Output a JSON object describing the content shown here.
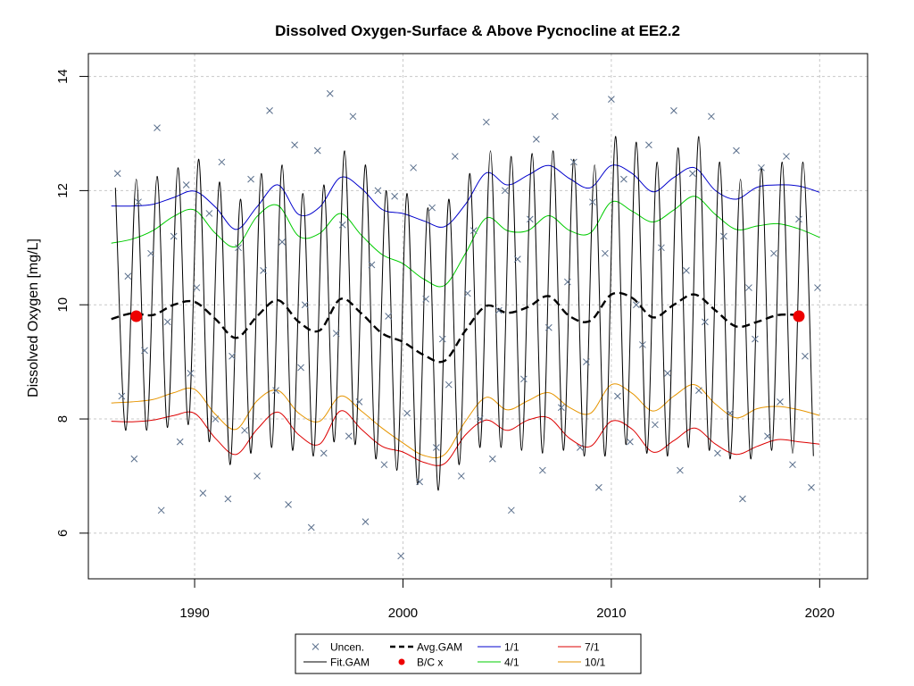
{
  "chart_data": {
    "type": "line",
    "title": "Dissolved Oxygen-Surface & Above Pycnocline at EE2.2",
    "ylabel": "Dissolved Oxygen [mg/L]",
    "xlabel": "",
    "xlim": [
      1984.9,
      2022.3
    ],
    "ylim": [
      5.2,
      14.4
    ],
    "x_ticks": [
      1990,
      2000,
      2010,
      2020
    ],
    "x_tick_labels": [
      "1990",
      "2000",
      "2010",
      "2020"
    ],
    "y_ticks": [
      6,
      8,
      10,
      12,
      14
    ],
    "y_tick_labels": [
      "6",
      "8",
      "10",
      "12",
      "14"
    ],
    "grid": true,
    "legend_position": "bottom-center",
    "legend": [
      {
        "label": "Uncen.",
        "kind": "cross",
        "color": "#5a6f8c"
      },
      {
        "label": "Avg.GAM",
        "kind": "dashed",
        "color": "#000000"
      },
      {
        "label": "1/1",
        "kind": "line",
        "color": "#0000cc"
      },
      {
        "label": "7/1",
        "kind": "line",
        "color": "#dd0000"
      },
      {
        "label": "Fit.GAM",
        "kind": "line",
        "color": "#000000"
      },
      {
        "label": "B/C x",
        "kind": "dot",
        "color": "#ee0000"
      },
      {
        "label": "4/1",
        "kind": "line",
        "color": "#00cc00"
      },
      {
        "label": "10/1",
        "kind": "line",
        "color": "#e69500"
      }
    ],
    "series": [
      {
        "name": "1/1",
        "color": "#0000cc",
        "x": [
          1986.0,
          1987.0,
          1988.0,
          1989.0,
          1990.0,
          1991.0,
          1992.0,
          1993.0,
          1994.0,
          1995.0,
          1996.0,
          1997.0,
          1998.0,
          1999.0,
          2000.0,
          2001.0,
          2002.0,
          2003.0,
          2004.0,
          2005.0,
          2006.0,
          2007.0,
          2008.0,
          2009.0,
          2010.0,
          2011.0,
          2012.0,
          2013.0,
          2014.0,
          2015.0,
          2016.0,
          2017.0,
          2018.0,
          2019.0,
          2020.0
        ],
        "y": [
          11.73,
          11.73,
          11.76,
          11.88,
          11.99,
          11.71,
          11.32,
          11.72,
          12.1,
          11.58,
          11.71,
          12.23,
          12.04,
          11.67,
          11.6,
          11.47,
          11.37,
          11.76,
          12.31,
          12.1,
          12.27,
          12.44,
          12.21,
          12.05,
          12.44,
          12.3,
          11.98,
          12.23,
          12.4,
          12.0,
          11.85,
          12.06,
          12.1,
          12.08,
          11.97
        ]
      },
      {
        "name": "4/1",
        "color": "#00cc00",
        "x": [
          1986.0,
          1987.0,
          1988.0,
          1989.0,
          1990.0,
          1991.0,
          1992.0,
          1993.0,
          1994.0,
          1995.0,
          1996.0,
          1997.0,
          1998.0,
          1999.0,
          2000.0,
          2001.0,
          2002.0,
          2003.0,
          2004.0,
          2005.0,
          2006.0,
          2007.0,
          2008.0,
          2009.0,
          2010.0,
          2011.0,
          2012.0,
          2013.0,
          2014.0,
          2015.0,
          2016.0,
          2017.0,
          2018.0,
          2019.0,
          2020.0
        ],
        "y": [
          11.08,
          11.15,
          11.3,
          11.55,
          11.66,
          11.25,
          11.02,
          11.55,
          11.74,
          11.2,
          11.25,
          11.6,
          11.22,
          10.88,
          10.72,
          10.45,
          10.34,
          10.9,
          11.52,
          11.3,
          11.3,
          11.56,
          11.3,
          11.26,
          11.8,
          11.64,
          11.45,
          11.66,
          11.9,
          11.58,
          11.32,
          11.38,
          11.42,
          11.33,
          11.18
        ]
      },
      {
        "name": "Avg.GAM",
        "color": "#000000",
        "x": [
          1986.0,
          1987.0,
          1988.0,
          1989.0,
          1990.0,
          1991.0,
          1992.0,
          1993.0,
          1994.0,
          1995.0,
          1996.0,
          1997.0,
          1998.0,
          1999.0,
          2000.0,
          2001.0,
          2002.0,
          2003.0,
          2004.0,
          2005.0,
          2006.0,
          2007.0,
          2008.0,
          2009.0,
          2010.0,
          2011.0,
          2012.0,
          2013.0,
          2014.0,
          2015.0,
          2016.0,
          2017.0,
          2018.0,
          2019.0
        ],
        "y": [
          9.75,
          9.85,
          9.82,
          10.0,
          10.05,
          9.75,
          9.42,
          9.8,
          10.08,
          9.7,
          9.55,
          10.1,
          9.85,
          9.5,
          9.35,
          9.12,
          9.02,
          9.55,
          9.98,
          9.86,
          9.96,
          10.15,
          9.8,
          9.72,
          10.18,
          10.12,
          9.78,
          10.0,
          10.18,
          9.9,
          9.62,
          9.7,
          9.82,
          9.82
        ]
      },
      {
        "name": "10/1",
        "color": "#e69500",
        "x": [
          1986.0,
          1987.0,
          1988.0,
          1989.0,
          1990.0,
          1991.0,
          1992.0,
          1993.0,
          1994.0,
          1995.0,
          1996.0,
          1997.0,
          1998.0,
          1999.0,
          2000.0,
          2001.0,
          2002.0,
          2003.0,
          2004.0,
          2005.0,
          2006.0,
          2007.0,
          2008.0,
          2009.0,
          2010.0,
          2011.0,
          2012.0,
          2013.0,
          2014.0,
          2015.0,
          2016.0,
          2017.0,
          2018.0,
          2019.0,
          2020.0
        ],
        "y": [
          8.28,
          8.3,
          8.34,
          8.46,
          8.52,
          8.08,
          7.82,
          8.32,
          8.5,
          8.1,
          7.96,
          8.4,
          8.14,
          7.84,
          7.58,
          7.36,
          7.38,
          7.96,
          8.38,
          8.16,
          8.32,
          8.46,
          8.2,
          8.1,
          8.6,
          8.45,
          8.14,
          8.4,
          8.6,
          8.26,
          8.02,
          8.18,
          8.22,
          8.16,
          8.06
        ]
      },
      {
        "name": "7/1",
        "color": "#dd0000",
        "x": [
          1986.0,
          1987.0,
          1988.0,
          1989.0,
          1990.0,
          1991.0,
          1992.0,
          1993.0,
          1994.0,
          1995.0,
          1996.0,
          1997.0,
          1998.0,
          1999.0,
          2000.0,
          2001.0,
          2002.0,
          2003.0,
          2004.0,
          2005.0,
          2006.0,
          2007.0,
          2008.0,
          2009.0,
          2010.0,
          2011.0,
          2012.0,
          2013.0,
          2014.0,
          2015.0,
          2016.0,
          2017.0,
          2018.0,
          2019.0,
          2020.0
        ],
        "y": [
          7.96,
          7.95,
          7.98,
          8.06,
          8.1,
          7.66,
          7.38,
          7.82,
          8.12,
          7.72,
          7.56,
          8.14,
          7.82,
          7.52,
          7.42,
          7.24,
          7.22,
          7.72,
          7.98,
          7.8,
          7.98,
          8.02,
          7.66,
          7.52,
          7.96,
          7.82,
          7.42,
          7.62,
          7.84,
          7.56,
          7.38,
          7.52,
          7.64,
          7.6,
          7.56
        ]
      },
      {
        "name": "Fit.GAM",
        "color": "#000000",
        "x": [
          1986.2,
          1986.7,
          1987.2,
          1987.7,
          1988.2,
          1988.7,
          1989.2,
          1989.7,
          1990.2,
          1990.7,
          1991.2,
          1991.7,
          1992.2,
          1992.7,
          1993.2,
          1993.7,
          1994.2,
          1994.7,
          1995.2,
          1995.7,
          1996.2,
          1996.7,
          1997.2,
          1997.7,
          1998.2,
          1998.7,
          1999.2,
          1999.7,
          2000.2,
          2000.7,
          2001.2,
          2001.7,
          2002.2,
          2002.7,
          2003.2,
          2003.7,
          2004.2,
          2004.7,
          2005.2,
          2005.7,
          2006.2,
          2006.7,
          2007.2,
          2007.7,
          2008.2,
          2008.7,
          2009.2,
          2009.7,
          2010.2,
          2010.7,
          2011.2,
          2011.7,
          2012.2,
          2012.7,
          2013.2,
          2013.7,
          2014.2,
          2014.7,
          2015.2,
          2015.7,
          2016.2,
          2016.7,
          2017.2,
          2017.7,
          2018.2,
          2018.7,
          2019.2,
          2019.7
        ],
        "y": [
          12.05,
          7.8,
          12.2,
          7.8,
          12.25,
          7.85,
          12.4,
          7.9,
          12.55,
          7.6,
          12.15,
          7.2,
          11.85,
          7.4,
          12.3,
          7.5,
          12.45,
          7.45,
          11.95,
          7.35,
          12.1,
          7.6,
          12.7,
          7.55,
          12.45,
          7.3,
          12.0,
          7.1,
          11.95,
          6.85,
          11.7,
          6.75,
          11.85,
          7.2,
          12.3,
          7.5,
          12.7,
          7.5,
          12.6,
          7.45,
          12.65,
          7.4,
          12.7,
          7.45,
          12.55,
          7.35,
          12.45,
          7.35,
          12.95,
          7.55,
          12.85,
          7.4,
          12.5,
          7.35,
          12.75,
          7.5,
          12.95,
          7.45,
          12.5,
          7.3,
          12.2,
          7.3,
          12.4,
          7.45,
          12.5,
          7.4,
          12.5,
          7.35
        ]
      },
      {
        "name": "Uncen.",
        "kind": "points",
        "color": "#5a6f8c",
        "x": [
          1986.3,
          1986.5,
          1986.8,
          1987.1,
          1987.3,
          1987.6,
          1987.9,
          1988.2,
          1988.4,
          1988.7,
          1989.0,
          1989.3,
          1989.6,
          1989.8,
          1990.1,
          1990.4,
          1990.7,
          1991.0,
          1991.3,
          1991.6,
          1991.8,
          1992.1,
          1992.4,
          1992.7,
          1993.0,
          1993.3,
          1993.6,
          1993.9,
          1994.2,
          1994.5,
          1994.8,
          1995.1,
          1995.3,
          1995.6,
          1995.9,
          1996.2,
          1996.5,
          1996.8,
          1997.1,
          1997.4,
          1997.6,
          1997.9,
          1998.2,
          1998.5,
          1998.8,
          1999.1,
          1999.3,
          1999.6,
          1999.9,
          2000.2,
          2000.5,
          2000.8,
          2001.1,
          2001.4,
          2001.6,
          2001.9,
          2002.2,
          2002.5,
          2002.8,
          2003.1,
          2003.4,
          2003.7,
          2004.0,
          2004.3,
          2004.6,
          2004.9,
          2005.2,
          2005.5,
          2005.8,
          2006.1,
          2006.4,
          2006.7,
          2007.0,
          2007.3,
          2007.6,
          2007.9,
          2008.2,
          2008.5,
          2008.8,
          2009.1,
          2009.4,
          2009.7,
          2010.0,
          2010.3,
          2010.6,
          2010.9,
          2011.2,
          2011.5,
          2011.8,
          2012.1,
          2012.4,
          2012.7,
          2013.0,
          2013.3,
          2013.6,
          2013.9,
          2014.2,
          2014.5,
          2014.8,
          2015.1,
          2015.4,
          2015.7,
          2016.0,
          2016.3,
          2016.6,
          2016.9,
          2017.2,
          2017.5,
          2017.8,
          2018.1,
          2018.4,
          2018.7,
          2019.0,
          2019.3,
          2019.6,
          2019.9
        ],
        "y": [
          12.3,
          8.4,
          10.5,
          7.3,
          11.8,
          9.2,
          10.9,
          13.1,
          6.4,
          9.7,
          11.2,
          7.6,
          12.1,
          8.8,
          10.3,
          6.7,
          11.6,
          8.0,
          12.5,
          6.6,
          9.1,
          11.0,
          7.8,
          12.2,
          7.0,
          10.6,
          13.4,
          8.5,
          11.1,
          6.5,
          12.8,
          8.9,
          10.0,
          6.1,
          12.7,
          7.4,
          13.7,
          9.5,
          11.4,
          7.7,
          13.3,
          8.3,
          6.2,
          10.7,
          12.0,
          7.2,
          9.8,
          11.9,
          5.6,
          8.1,
          12.4,
          6.9,
          10.1,
          11.7,
          7.5,
          9.4,
          8.6,
          12.6,
          7.0,
          10.2,
          11.3,
          8.0,
          13.2,
          7.3,
          9.9,
          12.0,
          6.4,
          10.8,
          8.7,
          11.5,
          12.9,
          7.1,
          9.6,
          13.3,
          8.2,
          10.4,
          12.5,
          7.5,
          9.0,
          11.8,
          6.8,
          10.9,
          13.6,
          8.4,
          12.2,
          7.6,
          10.0,
          9.3,
          12.8,
          7.9,
          11.0,
          8.8,
          13.4,
          7.1,
          10.6,
          12.3,
          8.5,
          9.7,
          13.3,
          7.4,
          11.2,
          8.1,
          12.7,
          6.6,
          10.3,
          9.4,
          12.4,
          7.7,
          10.9,
          8.3,
          12.6,
          7.2,
          11.5,
          9.1,
          6.8,
          10.3
        ]
      },
      {
        "name": "B/C x",
        "kind": "dots",
        "color": "#ee0000",
        "x": [
          1987.2,
          2019.0
        ],
        "y": [
          9.8,
          9.8
        ]
      }
    ]
  }
}
